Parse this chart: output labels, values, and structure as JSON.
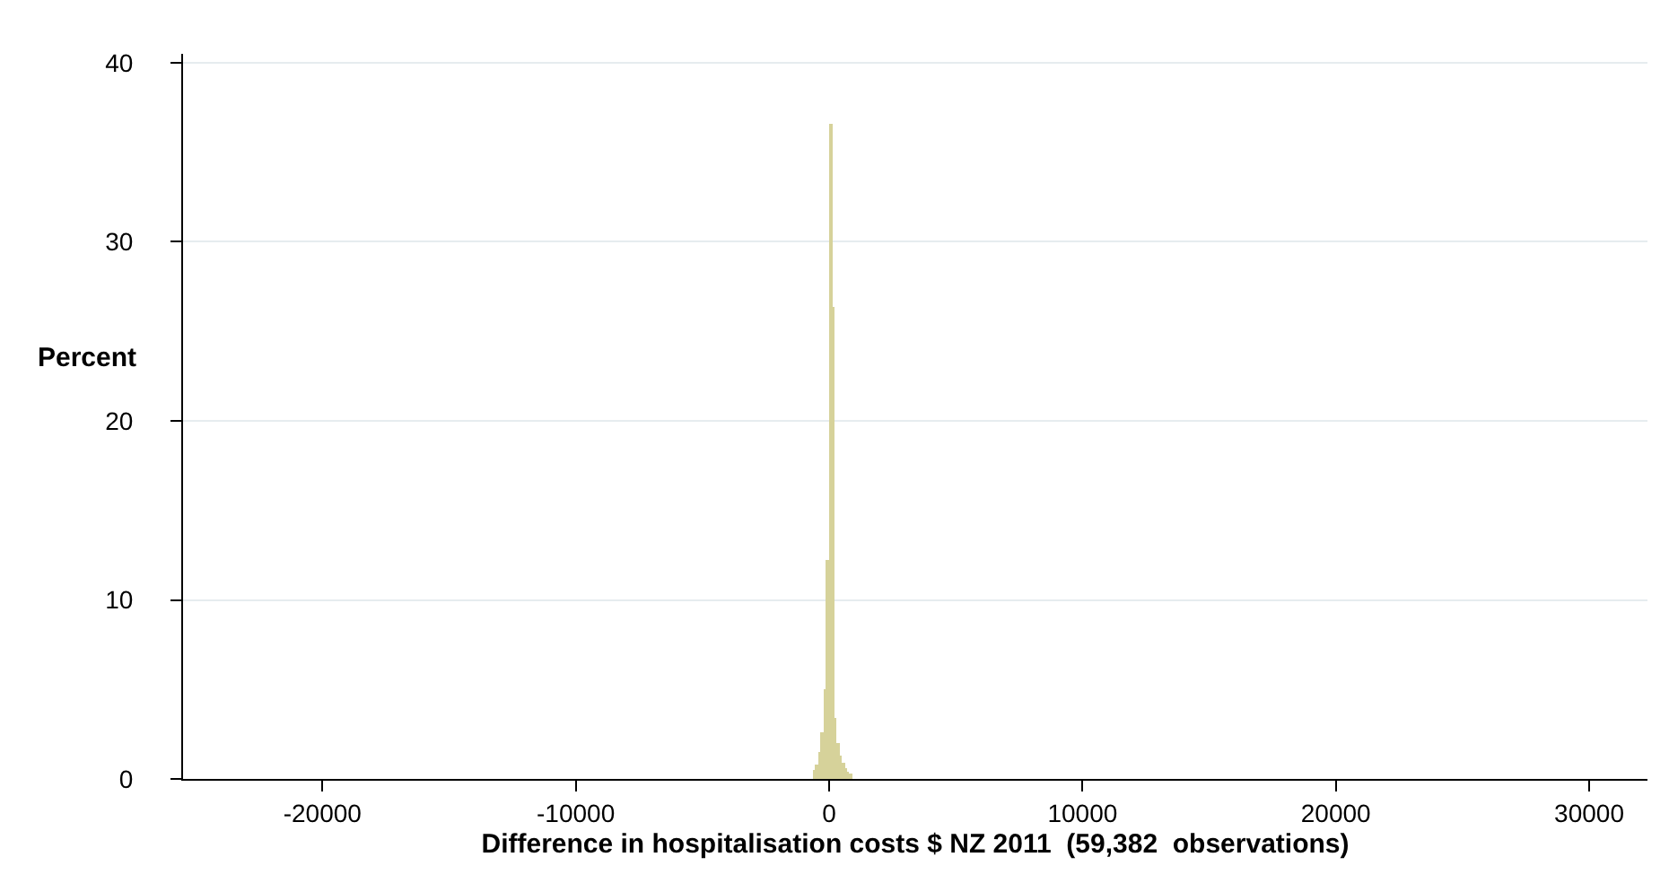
{
  "chart_data": {
    "type": "histogram",
    "xlabel": "Difference in hospitalisation costs $ NZ 2011  (59,382  observations)",
    "ylabel": "Percent",
    "bins": [
      -600,
      -500,
      -400,
      -300,
      -200,
      -100,
      0,
      100,
      200,
      300,
      400,
      500,
      600,
      700,
      800,
      900
    ],
    "values": [
      0.5,
      0.8,
      1.5,
      2.6,
      5.0,
      12.2,
      36.6,
      26.4,
      3.4,
      2.0,
      1.3,
      0.9,
      0.6,
      0.4,
      0.3
    ],
    "color": "#d6d29a",
    "xlim": [
      -25500,
      32300
    ],
    "xticks": [
      -20000,
      -10000,
      0,
      10000,
      20000,
      30000
    ],
    "ylim": [
      0,
      40.5
    ],
    "yticks": [
      0,
      10,
      20,
      30,
      40
    ],
    "grid": "y"
  }
}
